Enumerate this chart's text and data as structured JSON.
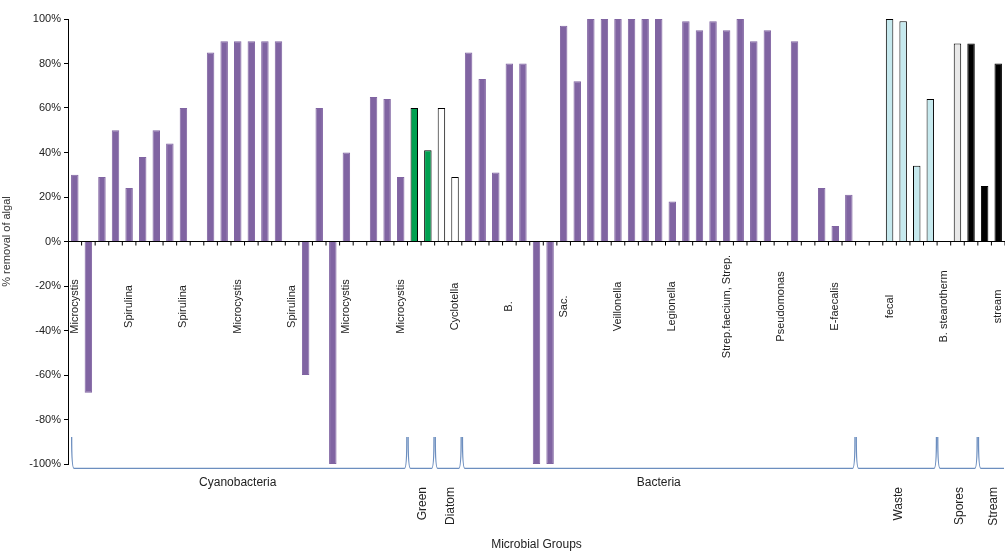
{
  "chart_data": {
    "type": "bar",
    "ylabel": "% removal of algal",
    "categories": [
      "Microcystis",
      null,
      null,
      null,
      "Spirulina",
      null,
      null,
      null,
      "Spirulina",
      null,
      null,
      null,
      "Microcystis",
      null,
      null,
      null,
      "Spirulina",
      null,
      null,
      null,
      "Microcystis",
      null,
      null,
      null,
      "Microcystis",
      null,
      null,
      null,
      "Cyclotella",
      null,
      null,
      null,
      "B.",
      null,
      null,
      null,
      "Sac.",
      null,
      null,
      null,
      "Veillonella",
      null,
      null,
      null,
      "Legionella",
      null,
      null,
      null,
      "Strep.faecium, Strep.",
      null,
      null,
      null,
      "Pseudomonas",
      null,
      null,
      null,
      "E-faecalis",
      null,
      null,
      null,
      "fecal",
      null,
      null,
      null,
      "B. stearotherm",
      null,
      null,
      null,
      "stream"
    ],
    "values": [
      30,
      -68,
      29,
      50,
      24,
      38,
      50,
      44,
      60,
      null,
      85,
      90,
      90,
      90,
      90,
      90,
      null,
      -60,
      60,
      -100,
      40,
      null,
      65,
      64,
      29,
      60,
      41,
      60,
      29,
      85,
      73,
      31,
      80,
      80,
      -100,
      -100,
      97,
      72,
      100,
      100,
      100,
      100,
      100,
      100,
      18,
      99,
      95,
      99,
      95,
      100,
      90,
      95,
      null,
      90,
      null,
      24,
      7,
      21,
      null,
      null,
      100,
      99,
      34,
      64,
      null,
      89,
      89,
      25,
      80
    ],
    "colors": [
      "#8064a2",
      "#8064a2",
      "#8064a2",
      "#8064a2",
      "#8064a2",
      "#8064a2",
      "#8064a2",
      "#8064a2",
      "#8064a2",
      "#8064a2",
      "#8064a2",
      "#8064a2",
      "#8064a2",
      "#8064a2",
      "#8064a2",
      "#8064a2",
      "#8064a2",
      "#8064a2",
      "#8064a2",
      "#8064a2",
      "#8064a2",
      "#8064a2",
      "#8064a2",
      "#8064a2",
      "#8064a2",
      "#00a050",
      "#00a050",
      "#ffffff",
      "#ffffff",
      "#8064a2",
      "#8064a2",
      "#8064a2",
      "#8064a2",
      "#8064a2",
      "#8064a2",
      "#8064a2",
      "#8064a2",
      "#8064a2",
      "#8064a2",
      "#8064a2",
      "#8064a2",
      "#8064a2",
      "#8064a2",
      "#8064a2",
      "#8064a2",
      "#8064a2",
      "#8064a2",
      "#8064a2",
      "#8064a2",
      "#8064a2",
      "#8064a2",
      "#8064a2",
      "#8064a2",
      "#8064a2",
      "#8064a2",
      "#8064a2",
      "#8064a2",
      "#8064a2",
      "#8064a2",
      "#8064a2",
      "#c6e9ee",
      "#c6e9ee",
      "#c6e9ee",
      "#c6e9ee",
      "#8064a2",
      "#e8e8e8",
      "#000000",
      "#000000",
      "#000000"
    ],
    "ylim": [
      -100,
      100
    ],
    "yticks": [
      {
        "value": -100,
        "label": "-100%"
      },
      {
        "value": -80,
        "label": "-80%"
      },
      {
        "value": -60,
        "label": "-60%"
      },
      {
        "value": -40,
        "label": "-40%"
      },
      {
        "value": -20,
        "label": "-20%"
      },
      {
        "value": 0,
        "label": "0%"
      },
      {
        "value": 20,
        "label": "20%"
      },
      {
        "value": 40,
        "label": "40%"
      },
      {
        "value": 60,
        "label": "60%"
      },
      {
        "value": 80,
        "label": "80%"
      },
      {
        "value": 100,
        "label": "100%"
      }
    ],
    "annotations": [
      "Cyanobacteria",
      "Green",
      "Diatom",
      "Bacteria",
      "Waste",
      "Spores",
      "Stream",
      "Microbial Groups"
    ],
    "grid": false
  }
}
